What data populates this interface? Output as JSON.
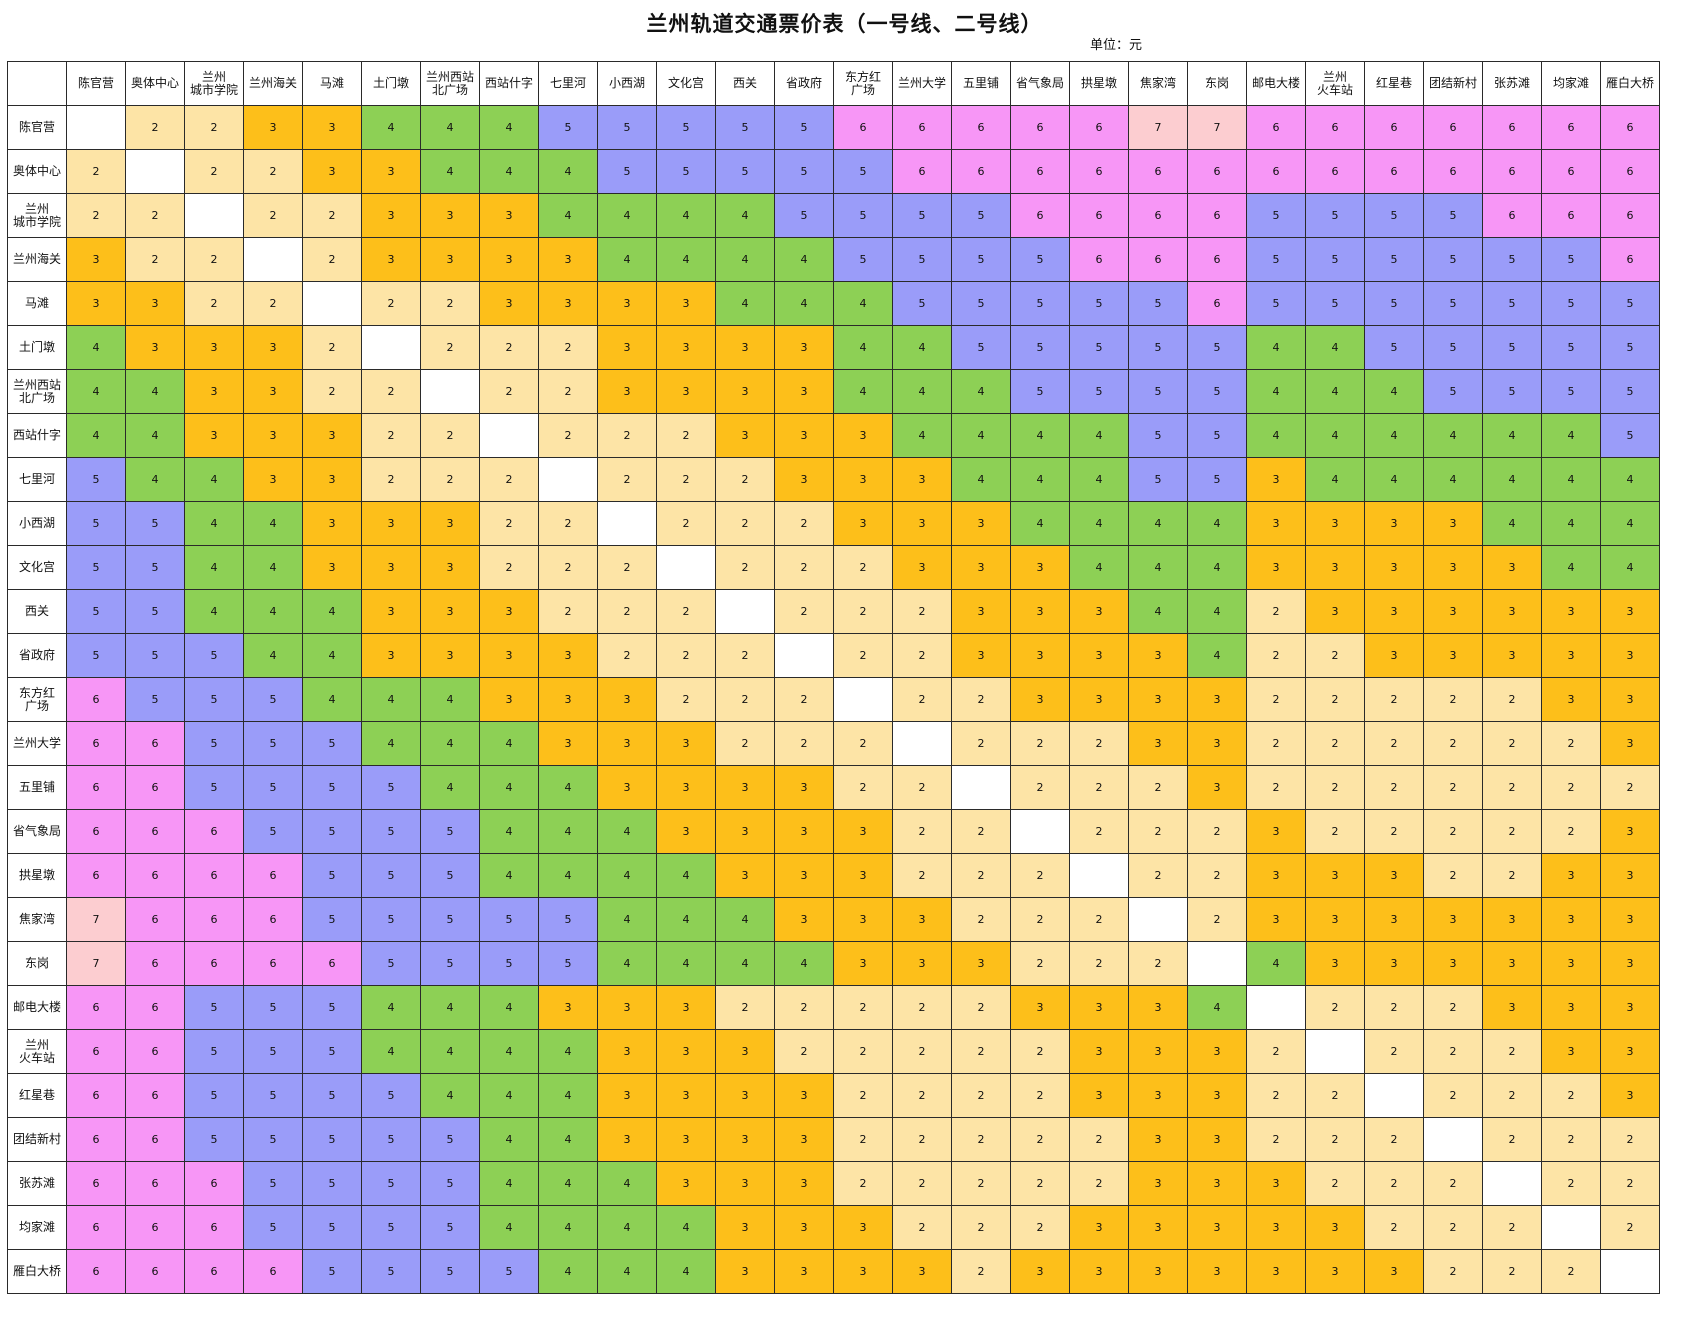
{
  "title": "兰州轨道交通票价表（一号线、二号线）",
  "unit": "单位：元",
  "colors": {
    "2": "#fde4a6",
    "3": "#fdbf1a",
    "4": "#8dd055",
    "5": "#9a9cf9",
    "6": "#f796f6",
    "7": "#fccdd0",
    "self": "#ffffff"
  },
  "stations": [
    "陈官营",
    "奥体中心",
    "兰州\n城市学院",
    "兰州海关",
    "马滩",
    "土门墩",
    "兰州西站\n北广场",
    "西站什字",
    "七里河",
    "小西湖",
    "文化宫",
    "西关",
    "省政府",
    "东方红\n广场",
    "兰州大学",
    "五里铺",
    "省气象局",
    "拱星墩",
    "焦家湾",
    "东岗",
    "邮电大楼",
    "兰州\n火车站",
    "红星巷",
    "团结新村",
    "张苏滩",
    "均家滩",
    "雁白大桥"
  ],
  "fares": [
    [
      "",
      "2",
      "2",
      "3",
      "3",
      "4",
      "4",
      "4",
      "5",
      "5",
      "5",
      "5",
      "5",
      "6",
      "6",
      "6",
      "6",
      "6",
      "7",
      "7",
      "6",
      "6",
      "6",
      "6",
      "6",
      "6",
      "6"
    ],
    [
      "2",
      "",
      "2",
      "2",
      "3",
      "3",
      "4",
      "4",
      "4",
      "5",
      "5",
      "5",
      "5",
      "5",
      "6",
      "6",
      "6",
      "6",
      "6",
      "6",
      "6",
      "6",
      "6",
      "6",
      "6",
      "6",
      "6"
    ],
    [
      "2",
      "2",
      "",
      "2",
      "2",
      "3",
      "3",
      "3",
      "4",
      "4",
      "4",
      "4",
      "5",
      "5",
      "5",
      "5",
      "6",
      "6",
      "6",
      "6",
      "5",
      "5",
      "5",
      "5",
      "6",
      "6",
      "6"
    ],
    [
      "3",
      "2",
      "2",
      "",
      "2",
      "3",
      "3",
      "3",
      "3",
      "4",
      "4",
      "4",
      "4",
      "5",
      "5",
      "5",
      "5",
      "6",
      "6",
      "6",
      "5",
      "5",
      "5",
      "5",
      "5",
      "5",
      "6"
    ],
    [
      "3",
      "3",
      "2",
      "2",
      "",
      "2",
      "2",
      "3",
      "3",
      "3",
      "3",
      "4",
      "4",
      "4",
      "5",
      "5",
      "5",
      "5",
      "5",
      "6",
      "5",
      "5",
      "5",
      "5",
      "5",
      "5",
      "5"
    ],
    [
      "4",
      "3",
      "3",
      "3",
      "2",
      "",
      "2",
      "2",
      "2",
      "3",
      "3",
      "3",
      "3",
      "4",
      "4",
      "5",
      "5",
      "5",
      "5",
      "5",
      "4",
      "4",
      "5",
      "5",
      "5",
      "5",
      "5"
    ],
    [
      "4",
      "4",
      "3",
      "3",
      "2",
      "2",
      "",
      "2",
      "2",
      "3",
      "3",
      "3",
      "3",
      "4",
      "4",
      "4",
      "5",
      "5",
      "5",
      "5",
      "4",
      "4",
      "4",
      "5",
      "5",
      "5",
      "5"
    ],
    [
      "4",
      "4",
      "3",
      "3",
      "3",
      "2",
      "2",
      "",
      "2",
      "2",
      "2",
      "3",
      "3",
      "3",
      "4",
      "4",
      "4",
      "4",
      "5",
      "5",
      "4",
      "4",
      "4",
      "4",
      "4",
      "4",
      "5"
    ],
    [
      "5",
      "4",
      "4",
      "3",
      "3",
      "2",
      "2",
      "2",
      "",
      "2",
      "2",
      "2",
      "3",
      "3",
      "3",
      "4",
      "4",
      "4",
      "5",
      "5",
      "3",
      "4",
      "4",
      "4",
      "4",
      "4",
      "4"
    ],
    [
      "5",
      "5",
      "4",
      "4",
      "3",
      "3",
      "3",
      "2",
      "2",
      "",
      "2",
      "2",
      "2",
      "3",
      "3",
      "3",
      "4",
      "4",
      "4",
      "4",
      "3",
      "3",
      "3",
      "3",
      "4",
      "4",
      "4"
    ],
    [
      "5",
      "5",
      "4",
      "4",
      "3",
      "3",
      "3",
      "2",
      "2",
      "2",
      "",
      "2",
      "2",
      "2",
      "3",
      "3",
      "3",
      "4",
      "4",
      "4",
      "3",
      "3",
      "3",
      "3",
      "3",
      "4",
      "4"
    ],
    [
      "5",
      "5",
      "4",
      "4",
      "4",
      "3",
      "3",
      "3",
      "2",
      "2",
      "2",
      "",
      "2",
      "2",
      "2",
      "3",
      "3",
      "3",
      "4",
      "4",
      "2",
      "3",
      "3",
      "3",
      "3",
      "3",
      "3"
    ],
    [
      "5",
      "5",
      "5",
      "4",
      "4",
      "3",
      "3",
      "3",
      "3",
      "2",
      "2",
      "2",
      "",
      "2",
      "2",
      "3",
      "3",
      "3",
      "3",
      "4",
      "2",
      "2",
      "3",
      "3",
      "3",
      "3",
      "3"
    ],
    [
      "6",
      "5",
      "5",
      "5",
      "4",
      "4",
      "4",
      "3",
      "3",
      "3",
      "2",
      "2",
      "2",
      "",
      "2",
      "2",
      "3",
      "3",
      "3",
      "3",
      "2",
      "2",
      "2",
      "2",
      "2",
      "3",
      "3"
    ],
    [
      "6",
      "6",
      "5",
      "5",
      "5",
      "4",
      "4",
      "4",
      "3",
      "3",
      "3",
      "2",
      "2",
      "2",
      "",
      "2",
      "2",
      "2",
      "3",
      "3",
      "2",
      "2",
      "2",
      "2",
      "2",
      "2",
      "3"
    ],
    [
      "6",
      "6",
      "5",
      "5",
      "5",
      "5",
      "4",
      "4",
      "4",
      "3",
      "3",
      "3",
      "3",
      "2",
      "2",
      "",
      "2",
      "2",
      "2",
      "3",
      "2",
      "2",
      "2",
      "2",
      "2",
      "2",
      "2"
    ],
    [
      "6",
      "6",
      "6",
      "5",
      "5",
      "5",
      "5",
      "4",
      "4",
      "4",
      "3",
      "3",
      "3",
      "3",
      "2",
      "2",
      "",
      "2",
      "2",
      "2",
      "3",
      "2",
      "2",
      "2",
      "2",
      "2",
      "3"
    ],
    [
      "6",
      "6",
      "6",
      "6",
      "5",
      "5",
      "5",
      "4",
      "4",
      "4",
      "4",
      "3",
      "3",
      "3",
      "2",
      "2",
      "2",
      "",
      "2",
      "2",
      "3",
      "3",
      "3",
      "2",
      "2",
      "3",
      "3"
    ],
    [
      "7",
      "6",
      "6",
      "6",
      "5",
      "5",
      "5",
      "5",
      "5",
      "4",
      "4",
      "4",
      "3",
      "3",
      "3",
      "2",
      "2",
      "2",
      "",
      "2",
      "3",
      "3",
      "3",
      "3",
      "3",
      "3",
      "3"
    ],
    [
      "7",
      "6",
      "6",
      "6",
      "6",
      "5",
      "5",
      "5",
      "5",
      "4",
      "4",
      "4",
      "4",
      "3",
      "3",
      "3",
      "2",
      "2",
      "2",
      "",
      "4",
      "3",
      "3",
      "3",
      "3",
      "3",
      "3"
    ],
    [
      "6",
      "6",
      "5",
      "5",
      "5",
      "4",
      "4",
      "4",
      "3",
      "3",
      "3",
      "2",
      "2",
      "2",
      "2",
      "2",
      "3",
      "3",
      "3",
      "4",
      "",
      "2",
      "2",
      "2",
      "3",
      "3",
      "3"
    ],
    [
      "6",
      "6",
      "5",
      "5",
      "5",
      "4",
      "4",
      "4",
      "4",
      "3",
      "3",
      "3",
      "2",
      "2",
      "2",
      "2",
      "2",
      "3",
      "3",
      "3",
      "2",
      "",
      "2",
      "2",
      "2",
      "3",
      "3"
    ],
    [
      "6",
      "6",
      "5",
      "5",
      "5",
      "5",
      "4",
      "4",
      "4",
      "3",
      "3",
      "3",
      "3",
      "2",
      "2",
      "2",
      "2",
      "3",
      "3",
      "3",
      "2",
      "2",
      "",
      "2",
      "2",
      "2",
      "3"
    ],
    [
      "6",
      "6",
      "5",
      "5",
      "5",
      "5",
      "5",
      "4",
      "4",
      "3",
      "3",
      "3",
      "3",
      "2",
      "2",
      "2",
      "2",
      "2",
      "3",
      "3",
      "2",
      "2",
      "2",
      "",
      "2",
      "2",
      "2"
    ],
    [
      "6",
      "6",
      "6",
      "5",
      "5",
      "5",
      "5",
      "4",
      "4",
      "4",
      "3",
      "3",
      "3",
      "2",
      "2",
      "2",
      "2",
      "2",
      "3",
      "3",
      "3",
      "2",
      "2",
      "2",
      "",
      "2",
      "2"
    ],
    [
      "6",
      "6",
      "6",
      "5",
      "5",
      "5",
      "5",
      "4",
      "4",
      "4",
      "4",
      "3",
      "3",
      "3",
      "2",
      "2",
      "2",
      "3",
      "3",
      "3",
      "3",
      "3",
      "2",
      "2",
      "2",
      "",
      "2"
    ],
    [
      "6",
      "6",
      "6",
      "6",
      "5",
      "5",
      "5",
      "5",
      "4",
      "4",
      "4",
      "3",
      "3",
      "3",
      "3",
      "2",
      "3",
      "3",
      "3",
      "3",
      "3",
      "3",
      "3",
      "2",
      "2",
      "2",
      ""
    ]
  ]
}
